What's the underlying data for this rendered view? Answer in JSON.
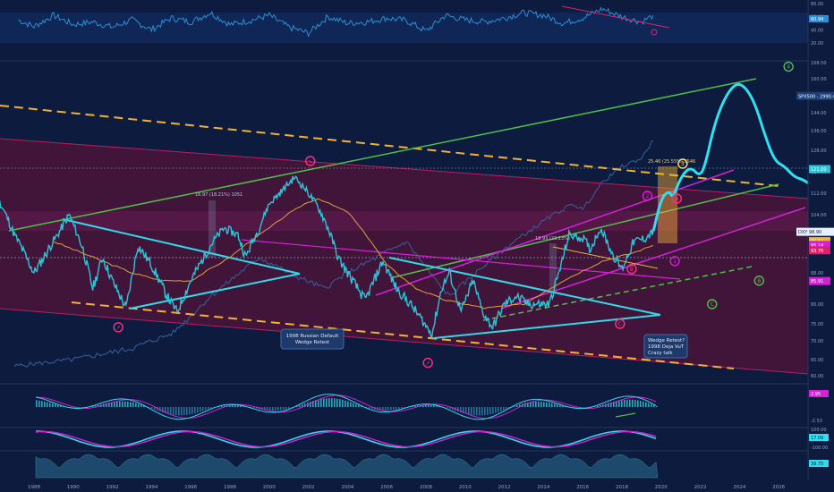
{
  "colors": {
    "background": "#0d1b3e",
    "candle_up": "#2ec4d6",
    "candle_down": "#2a7fa8",
    "channel_fill": "#6b1035",
    "channel_edge": "#e01f6a",
    "wedge": "#34d9e8",
    "orange_dash": "#f2b233",
    "green_line": "#4fbf4a",
    "magenta": "#d321d6",
    "projection": "#2fe0f2",
    "rsi": "#2b8fd1",
    "macd_line": "#34d9e8",
    "macd_signal": "#d321d6",
    "volume_area": "#1f4f73",
    "axis_text": "#8fa3c7",
    "spx_overlay": "#3a5f9a",
    "label_pink": "#ff2f86",
    "label_yellow": "#ffe066",
    "label_green": "#4fbf4a",
    "label_magenta": "#d321d6"
  },
  "chart_data": [
    {
      "type": "line",
      "name": "rsi-panel",
      "ylim": [
        0,
        100
      ],
      "y_ticks": [
        "80.00",
        "60.00",
        "40.00",
        "20.00"
      ],
      "last_value_tag": "60.94",
      "series_points": [
        [
          1987.2,
          55
        ],
        [
          1988,
          45
        ],
        [
          1989,
          62
        ],
        [
          1990,
          48
        ],
        [
          1991,
          52
        ],
        [
          1992,
          44
        ],
        [
          1993,
          55
        ],
        [
          1994,
          40
        ],
        [
          1995,
          58
        ],
        [
          1996,
          52
        ],
        [
          1997,
          66
        ],
        [
          1998,
          48
        ],
        [
          1999,
          54
        ],
        [
          2000,
          62
        ],
        [
          2001,
          44
        ],
        [
          2002,
          35
        ],
        [
          2003,
          60
        ],
        [
          2004,
          50
        ],
        [
          2005,
          52
        ],
        [
          2006,
          58
        ],
        [
          2007,
          54
        ],
        [
          2008,
          38
        ],
        [
          2009,
          62
        ],
        [
          2010,
          55
        ],
        [
          2011,
          52
        ],
        [
          2012,
          58
        ],
        [
          2013,
          66
        ],
        [
          2014,
          62
        ],
        [
          2015,
          50
        ],
        [
          2016,
          58
        ],
        [
          2017,
          72
        ],
        [
          2018,
          60
        ],
        [
          2019,
          52
        ],
        [
          2019.6,
          62
        ]
      ],
      "divergence_label": "D"
    },
    {
      "type": "line",
      "name": "main-price",
      "x_ticks": [
        "1988",
        "1990",
        "1992",
        "1994",
        "1996",
        "1998",
        "2000",
        "2002",
        "2004",
        "2006",
        "2008",
        "2010",
        "2012",
        "2014",
        "2016",
        "2018",
        "2020",
        "2022",
        "2024",
        "2026"
      ],
      "y_ticks": [
        "168.00",
        "160.00",
        "152.00",
        "144.00",
        "136.00",
        "128.00",
        "120.00",
        "112.00",
        "104.00",
        "96.00",
        "88.00",
        "80.00",
        "75.00",
        "70.00",
        "65.00",
        "60.00"
      ],
      "ylim": [
        60,
        168
      ],
      "xlim": [
        1986.5,
        2028.7
      ],
      "price_tags": [
        {
          "label": "SPX500 - 2990.42",
          "value": 151.5
        },
        {
          "label": "121.00",
          "value": 121.0
        },
        {
          "label": "DXY 98.90",
          "value": 98.9
        },
        {
          "label": "96.11",
          "value": 96.11
        },
        {
          "label": "95.14",
          "value": 95.14
        },
        {
          "label": "93.76",
          "value": 93.76
        },
        {
          "label": "85.91",
          "value": 85.91
        }
      ],
      "dxy": [
        [
          1985.2,
          128
        ],
        [
          1986,
          112
        ],
        [
          1987,
          98
        ],
        [
          1988,
          88
        ],
        [
          1988.5,
          92
        ],
        [
          1989.2,
          98
        ],
        [
          1989.8,
          104
        ],
        [
          1990.5,
          94
        ],
        [
          1991,
          84
        ],
        [
          1991.5,
          92
        ],
        [
          1992,
          86
        ],
        [
          1992.7,
          79
        ],
        [
          1993.3,
          95
        ],
        [
          1994,
          90
        ],
        [
          1994.8,
          82
        ],
        [
          1995.3,
          78
        ],
        [
          1996,
          86
        ],
        [
          1997,
          95
        ],
        [
          1997.7,
          100
        ],
        [
          1998.4,
          98
        ],
        [
          1998.8,
          92
        ],
        [
          1999.5,
          100
        ],
        [
          2000,
          108
        ],
        [
          2000.8,
          114
        ],
        [
          2001.3,
          118
        ],
        [
          2001.8,
          114
        ],
        [
          2002.4,
          108
        ],
        [
          2003,
          100
        ],
        [
          2003.5,
          92
        ],
        [
          2004,
          88
        ],
        [
          2004.9,
          81
        ],
        [
          2005.8,
          91
        ],
        [
          2006.5,
          84
        ],
        [
          2007.2,
          80
        ],
        [
          2007.8,
          76
        ],
        [
          2008.3,
          72
        ],
        [
          2008.8,
          84
        ],
        [
          2009.2,
          88
        ],
        [
          2009.8,
          78
        ],
        [
          2010.4,
          86
        ],
        [
          2010.9,
          78
        ],
        [
          2011.4,
          74
        ],
        [
          2012,
          80
        ],
        [
          2012.6,
          82
        ],
        [
          2013.2,
          80
        ],
        [
          2013.8,
          80
        ],
        [
          2014.3,
          80
        ],
        [
          2014.9,
          90
        ],
        [
          2015.3,
          98
        ],
        [
          2016,
          97
        ],
        [
          2016.4,
          94
        ],
        [
          2016.9,
          100
        ],
        [
          2017.5,
          93
        ],
        [
          2018,
          89
        ],
        [
          2018.6,
          96
        ],
        [
          2019.2,
          97
        ],
        [
          2019.6,
          98.9
        ]
      ],
      "dxy_projection": [
        [
          2019.6,
          98.9
        ],
        [
          2020,
          110
        ],
        [
          2020.4,
          113
        ],
        [
          2020.6,
          110
        ],
        [
          2021,
          118
        ],
        [
          2021.5,
          122
        ],
        [
          2022,
          118
        ],
        [
          2022.3,
          124
        ],
        [
          2022.7,
          138
        ],
        [
          2023.2,
          150
        ],
        [
          2023.8,
          158
        ],
        [
          2024.3,
          156
        ],
        [
          2024.8,
          148
        ],
        [
          2025.3,
          134
        ],
        [
          2025.8,
          124
        ],
        [
          2026.3,
          122
        ],
        [
          2026.8,
          118
        ],
        [
          2027.3,
          117
        ],
        [
          2028,
          113
        ]
      ],
      "ma_orange": [
        [
          1989,
          96
        ],
        [
          1991,
          92
        ],
        [
          1993,
          88
        ],
        [
          1994.5,
          86
        ],
        [
          1996,
          86
        ],
        [
          1998,
          92
        ],
        [
          2000,
          100
        ],
        [
          2001.8,
          108
        ],
        [
          2002.5,
          110
        ],
        [
          2004,
          105
        ],
        [
          2006,
          90
        ],
        [
          2007.5,
          84
        ],
        [
          2009,
          81
        ],
        [
          2011,
          79
        ],
        [
          2013,
          80
        ],
        [
          2015,
          86
        ],
        [
          2017,
          91
        ],
        [
          2018.5,
          93
        ],
        [
          2019.6,
          95
        ]
      ],
      "spx_overlay": [
        [
          1987,
          63
        ],
        [
          1990,
          65
        ],
        [
          1993,
          68
        ],
        [
          1995,
          72
        ],
        [
          1997,
          82
        ],
        [
          1999.5,
          92
        ],
        [
          2001,
          88
        ],
        [
          2002.8,
          84
        ],
        [
          2004,
          88
        ],
        [
          2007,
          96
        ],
        [
          2008.5,
          86
        ],
        [
          2009.2,
          82
        ],
        [
          2011,
          90
        ],
        [
          2013,
          98
        ],
        [
          2014.5,
          104
        ],
        [
          2015.5,
          108
        ],
        [
          2016,
          106
        ],
        [
          2017,
          116
        ],
        [
          2018,
          122
        ],
        [
          2019,
          125
        ],
        [
          2019.6,
          132
        ]
      ],
      "annotations": {
        "note_1998": "1998 Russian Default Wedge Retest",
        "note_2019": [
          "Wedge Retest?",
          "1998 Deja VuT",
          "Crazy talk"
        ],
        "measure_1995": "16.97 (18.21%) 1051",
        "measure_2014": "18.93 (23.13%)",
        "measure_2019": "25.46 (25.55%) 2546"
      },
      "markers": [
        {
          "symbol": "↘",
          "year": 2002.1,
          "value": 124,
          "color": "label_pink"
        },
        {
          "symbol": "↗",
          "year": 1992.3,
          "value": 74,
          "color": "label_pink"
        },
        {
          "symbol": "↗",
          "year": 2008.1,
          "value": 64,
          "color": "label_pink"
        },
        {
          "symbol": "4",
          "year": 2026.5,
          "value": 166,
          "color": "label_green"
        },
        {
          "symbol": "3",
          "year": 2021.1,
          "value": 123,
          "color": "label_yellow"
        },
        {
          "symbol": "2",
          "year": 2019.3,
          "value": 111,
          "color": "label_magenta"
        },
        {
          "symbol": "1",
          "year": 2020.7,
          "value": 91,
          "color": "label_magenta"
        },
        {
          "symbol": "A",
          "year": 2020.8,
          "value": 110,
          "color": "label_pink"
        },
        {
          "symbol": "B",
          "year": 2018.5,
          "value": 89,
          "color": "label_pink"
        },
        {
          "symbol": "C",
          "year": 2017.9,
          "value": 75,
          "color": "label_pink"
        },
        {
          "symbol": "C",
          "year": 2022.6,
          "value": 80,
          "color": "label_green"
        },
        {
          "symbol": "B",
          "year": 2025.0,
          "value": 86,
          "color": "label_green"
        }
      ]
    },
    {
      "type": "line",
      "name": "macd-panel",
      "y_ticks": [
        "2.95",
        "-2.53"
      ],
      "last_value_tag": "2.95"
    },
    {
      "type": "line",
      "name": "stoch-panel",
      "y_ticks": [
        "100.00",
        "-100.00"
      ],
      "last_value_tag": "17.09"
    },
    {
      "type": "area",
      "name": "volume-panel",
      "last_value_tag": "39.75"
    }
  ]
}
